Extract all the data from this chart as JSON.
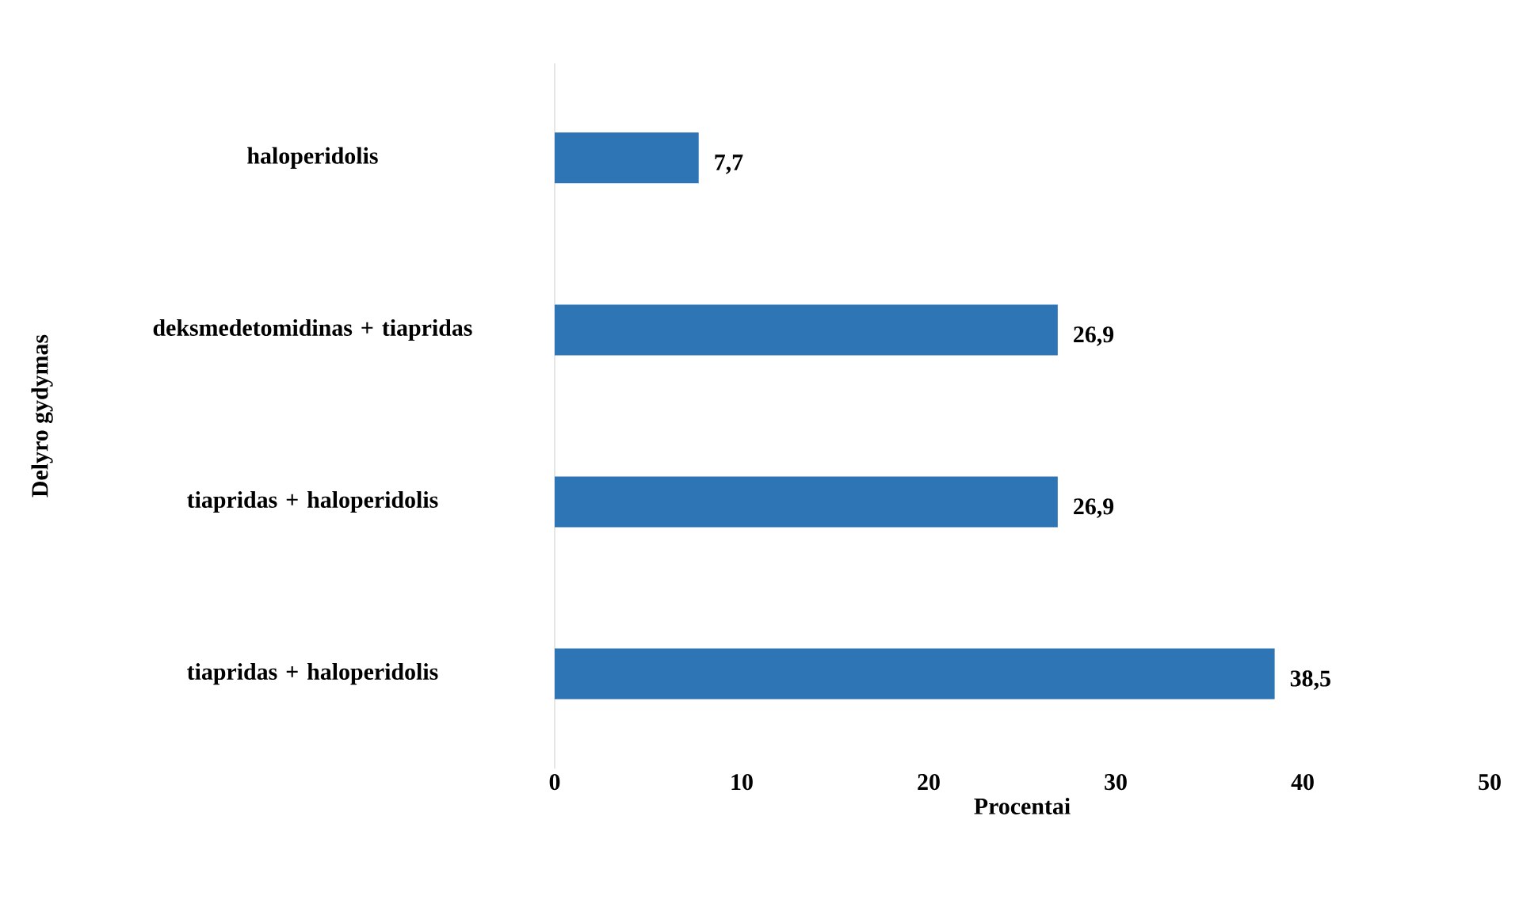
{
  "chart_data": {
    "type": "bar",
    "orientation": "horizontal",
    "xlabel": "Procentai",
    "ylabel": "Delyro gydymas",
    "categories": [
      "haloperidolis",
      "deksmedetomidinas + tiapridas",
      "tiapridas + haloperidolis",
      "tiapridas + haloperidolis"
    ],
    "values": [
      7.7,
      26.9,
      26.9,
      38.5
    ],
    "value_labels": [
      "7,7",
      "26,9",
      "26,9",
      "38,5"
    ],
    "color": "#2e75b6",
    "xlim": [
      0,
      50
    ],
    "xticks": [
      0,
      10,
      20,
      30,
      40,
      50
    ],
    "grid": false
  }
}
